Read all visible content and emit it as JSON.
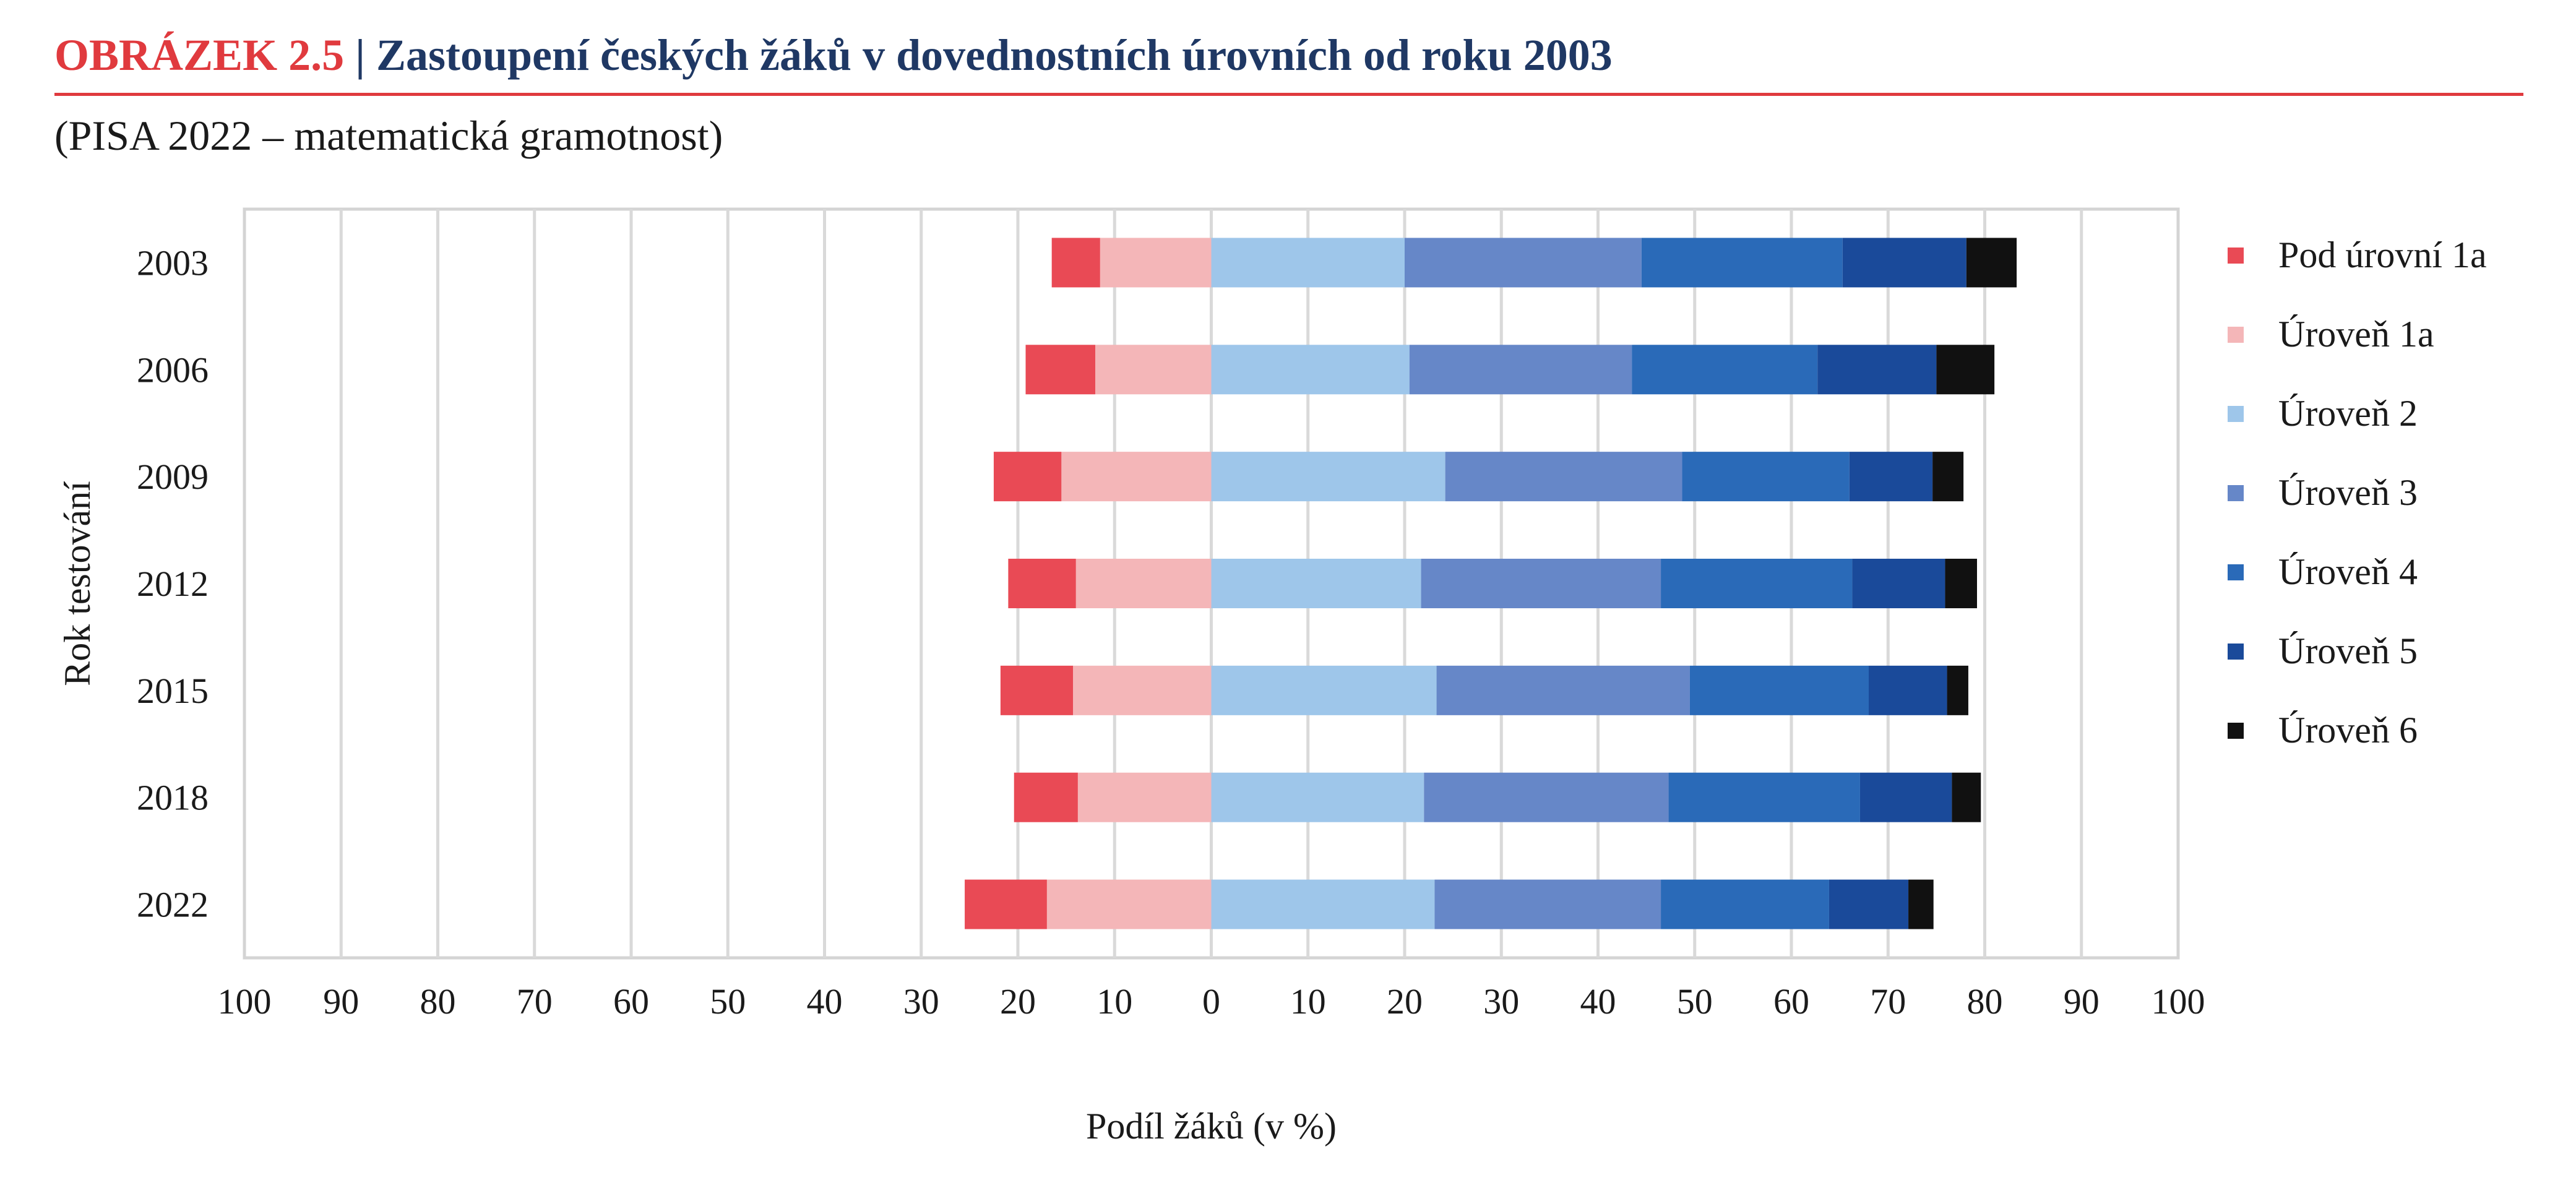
{
  "title": {
    "label": "OBRÁZEK  2.5",
    "separator": "|",
    "text": "Zastoupení českých žáků v dovednostních úrovních od roku 2003"
  },
  "subtitle": "(PISA 2022 – matematická gramotnost)",
  "chart_data": {
    "type": "bar",
    "orientation": "horizontal",
    "stacked": "diverging",
    "title": "Zastoupení českých žáků v dovednostních úrovních od roku 2003",
    "subtitle": "(PISA 2022 – matematická gramotnost)",
    "xlabel": "Podíl žáků (v %)",
    "ylabel": "Rok testování",
    "xlim": [
      -100,
      100
    ],
    "xticks": [
      "100",
      "90",
      "80",
      "70",
      "60",
      "50",
      "40",
      "30",
      "20",
      "10",
      "0",
      "10",
      "20",
      "30",
      "40",
      "50",
      "60",
      "70",
      "80",
      "90",
      "100"
    ],
    "grid": true,
    "legend_position": "right",
    "categories": [
      "2003",
      "2006",
      "2009",
      "2012",
      "2015",
      "2018",
      "2022"
    ],
    "negative_series": [
      {
        "name": "Úroveň 1a",
        "color": "#f4b6b8",
        "values": [
          11.5,
          12.0,
          15.5,
          14.0,
          14.3,
          13.8,
          17.0
        ]
      },
      {
        "name": "Pod úrovní 1a",
        "color": "#e94a55",
        "values": [
          5.0,
          7.2,
          7.0,
          7.0,
          7.5,
          6.6,
          8.5
        ]
      }
    ],
    "positive_series": [
      {
        "name": "Úroveň 2",
        "color": "#9ec6ea",
        "values": [
          20.0,
          20.5,
          24.2,
          21.7,
          23.3,
          22.0,
          23.1
        ]
      },
      {
        "name": "Úroveň 3",
        "color": "#6687c8",
        "values": [
          24.5,
          23.0,
          24.5,
          24.8,
          26.2,
          25.3,
          23.4
        ]
      },
      {
        "name": "Úroveň 4",
        "color": "#2a6ab8",
        "values": [
          20.8,
          19.2,
          17.3,
          19.8,
          18.5,
          19.8,
          17.4
        ]
      },
      {
        "name": "Úroveň 5",
        "color": "#1a4a9a",
        "values": [
          12.8,
          12.3,
          8.6,
          9.6,
          8.1,
          9.5,
          8.2
        ]
      },
      {
        "name": "Úroveň 6",
        "color": "#111111",
        "values": [
          5.2,
          6.0,
          3.2,
          3.3,
          2.2,
          3.0,
          2.6
        ]
      }
    ],
    "legend": [
      {
        "name": "Pod úrovní 1a",
        "color": "#e94a55"
      },
      {
        "name": "Úroveň 1a",
        "color": "#f4b6b8"
      },
      {
        "name": "Úroveň 2",
        "color": "#9ec6ea"
      },
      {
        "name": "Úroveň 3",
        "color": "#6687c8"
      },
      {
        "name": "Úroveň 4",
        "color": "#2a6ab8"
      },
      {
        "name": "Úroveň 5",
        "color": "#1a4a9a"
      },
      {
        "name": "Úroveň 6",
        "color": "#111111"
      }
    ]
  }
}
